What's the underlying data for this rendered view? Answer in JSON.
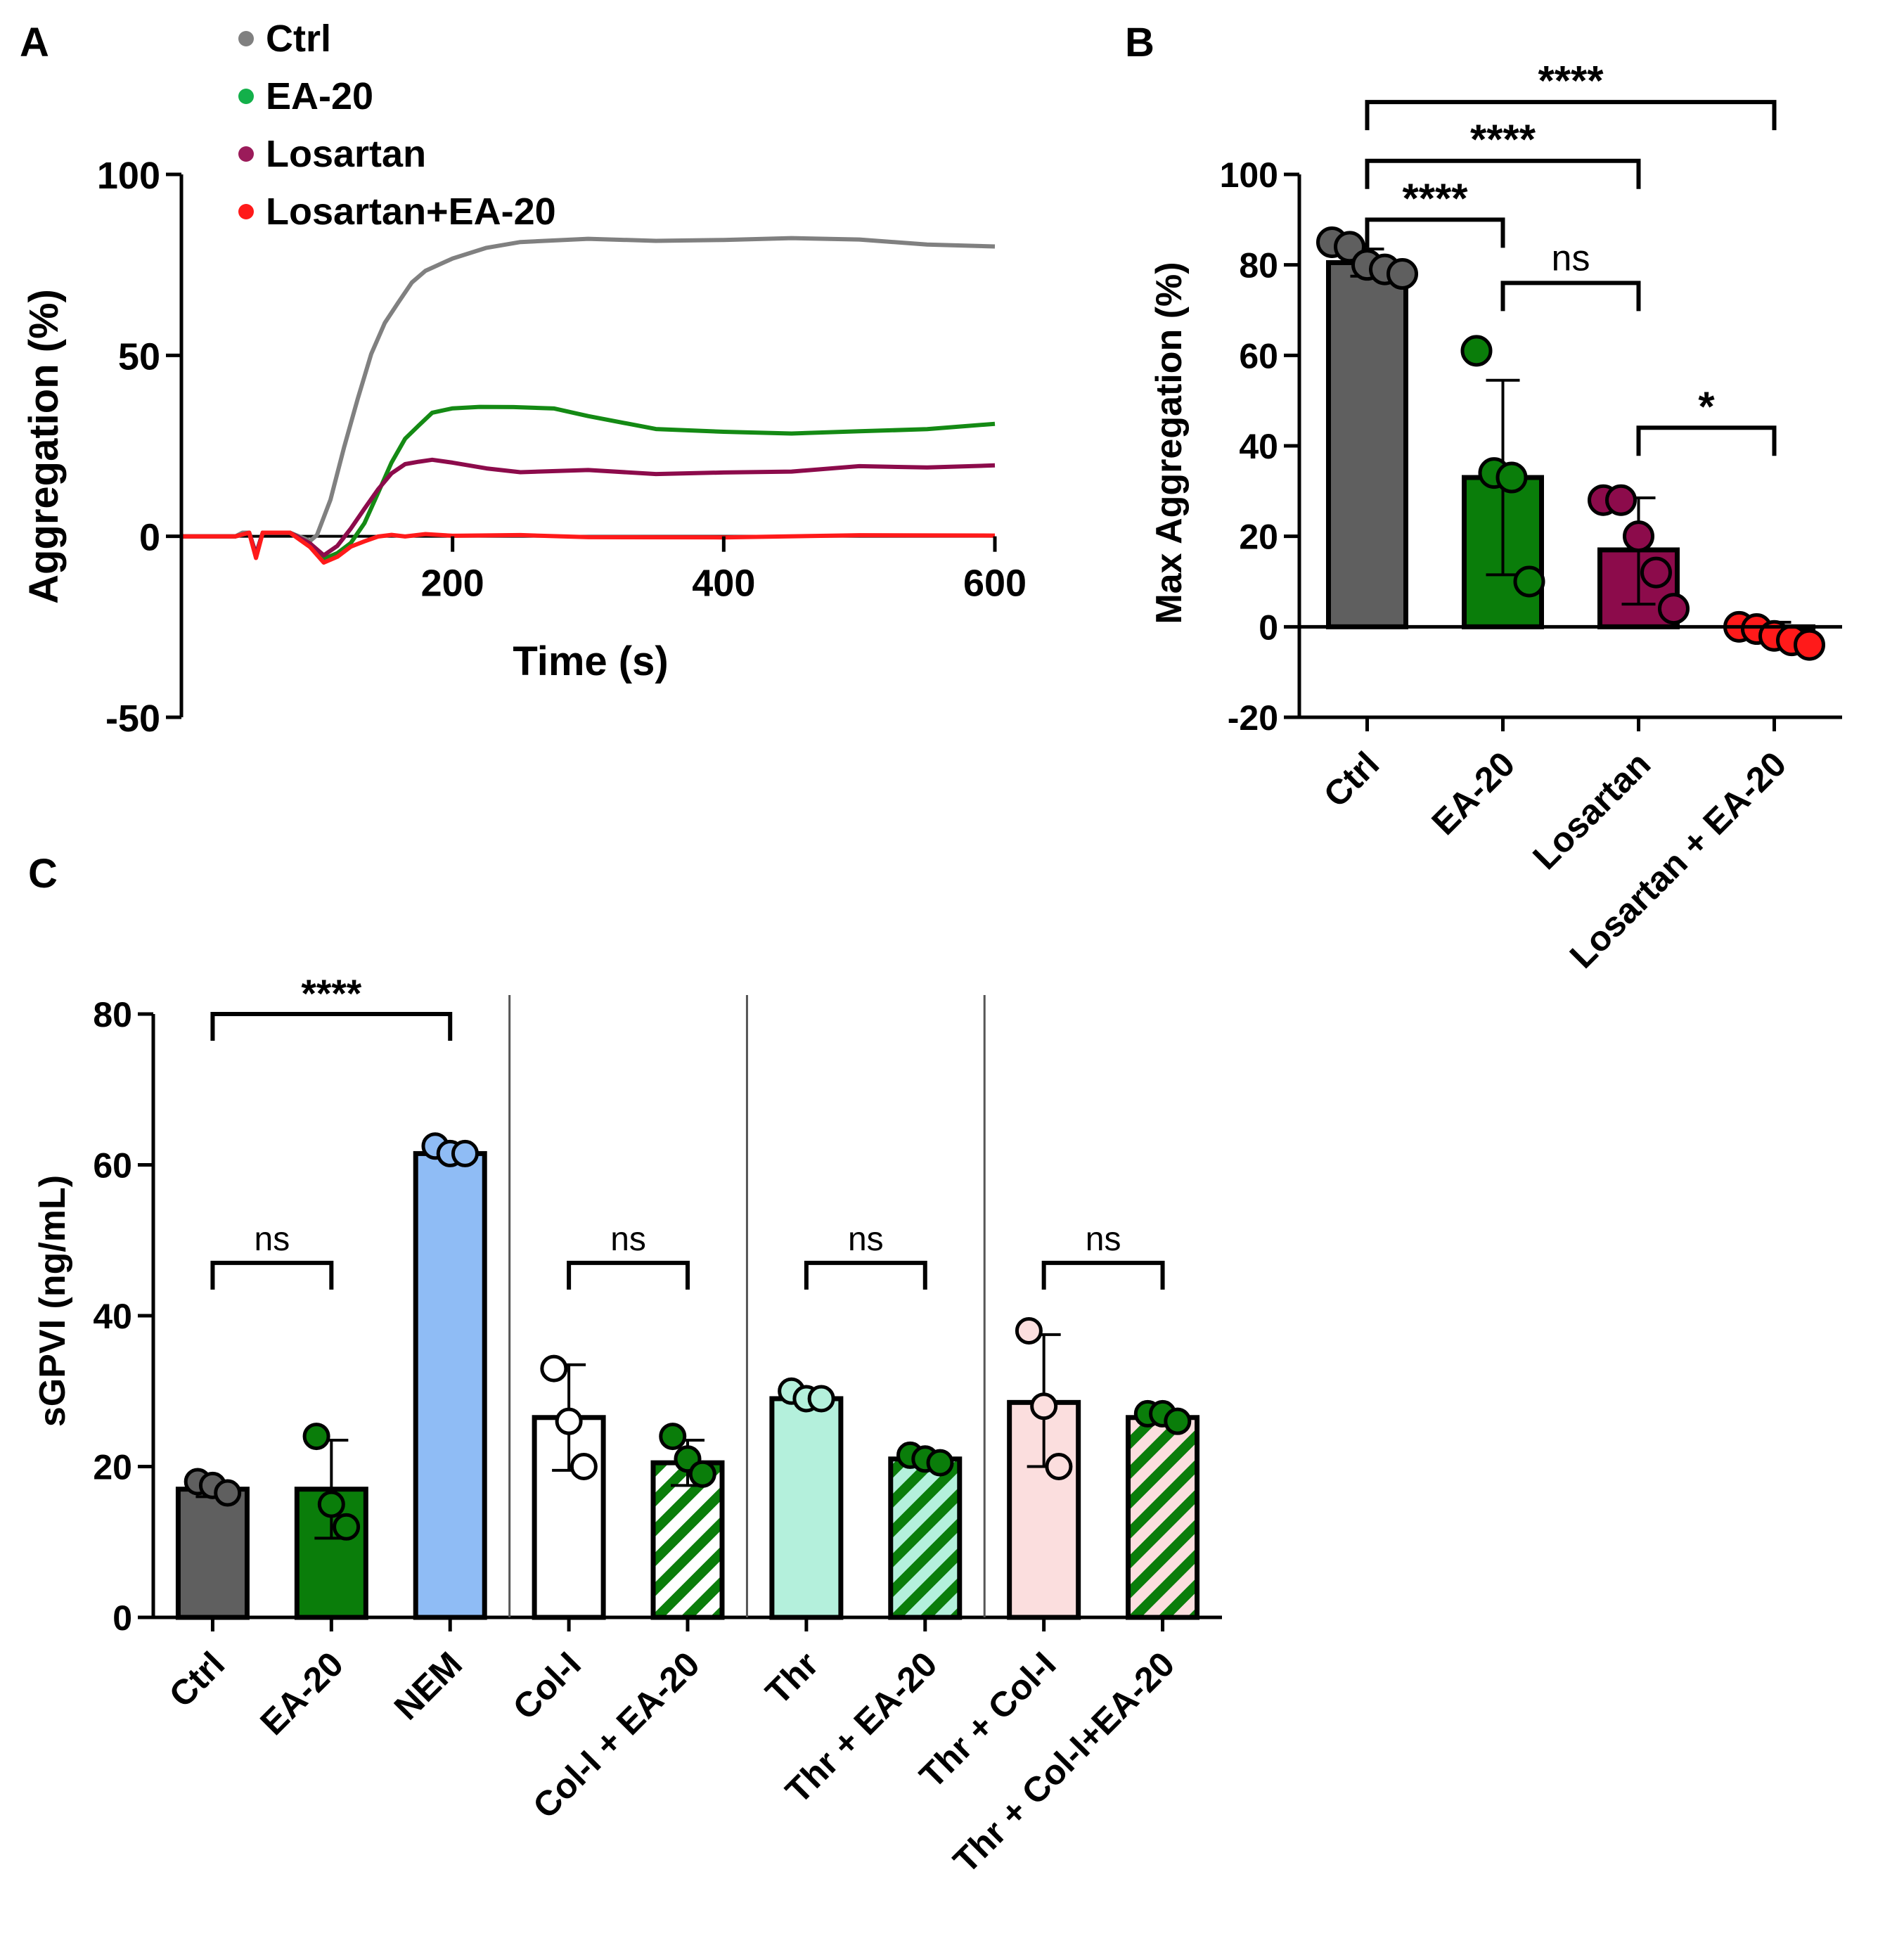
{
  "panel_labels": {
    "a": "A",
    "b": "B",
    "c": "C"
  },
  "colors": {
    "ctrl": "#5f5f5f",
    "ctrl_line": "#808080",
    "ea20": "#0a7d0a",
    "losartan": "#8c0b4b",
    "los_ea20": "#ff1a1a",
    "nem": "#8fbcf5",
    "colI": "#ffffff",
    "thr": "#b4f0dc",
    "thr_colI": "#fbdede",
    "axis": "#000000"
  },
  "chart_data": [
    {
      "id": "A",
      "type": "line",
      "title": "",
      "xlabel": "Time (s)",
      "ylabel": "Aggregation (%)",
      "xlim": [
        0,
        600
      ],
      "ylim": [
        -50,
        100
      ],
      "xticks": [
        "200",
        "400",
        "600"
      ],
      "xtick_values": [
        200,
        400,
        600
      ],
      "yticks": [
        "-50",
        "0",
        "50",
        "100"
      ],
      "ytick_values": [
        -50,
        0,
        50,
        100
      ],
      "legend": [
        {
          "label": "Ctrl",
          "color": "#808080"
        },
        {
          "label": "EA-20",
          "color": "#13b04a"
        },
        {
          "label": "Losartan",
          "color": "#9b1b5a"
        },
        {
          "label": "Losartan+EA-20",
          "color": "#ff1a1a"
        }
      ],
      "series": [
        {
          "name": "Ctrl",
          "color": "#808080",
          "x": [
            0,
            40,
            45,
            50,
            55,
            60,
            80,
            95,
            100,
            110,
            120,
            130,
            140,
            150,
            160,
            170,
            180,
            200,
            225,
            250,
            300,
            350,
            400,
            450,
            500,
            550,
            600
          ],
          "y": [
            0,
            0,
            1,
            1,
            -5,
            1,
            1,
            -1,
            0,
            10,
            25,
            38,
            50,
            59,
            65,
            70,
            73,
            77,
            80,
            81,
            82,
            82,
            82,
            82,
            82,
            81,
            80
          ]
        },
        {
          "name": "EA-20",
          "color": "#148a14",
          "x": [
            0,
            40,
            50,
            55,
            60,
            80,
            95,
            105,
            115,
            125,
            135,
            145,
            155,
            165,
            175,
            185,
            200,
            220,
            245,
            275,
            300,
            350,
            400,
            450,
            500,
            550,
            600
          ],
          "y": [
            0,
            0,
            1,
            -5,
            1,
            1,
            -2,
            -6,
            -5,
            -2,
            4,
            12,
            20,
            27,
            31,
            34,
            35,
            36,
            36,
            35,
            33,
            30,
            29,
            28,
            29,
            30,
            31
          ]
        },
        {
          "name": "Losartan",
          "color": "#8c0b4b",
          "x": [
            0,
            40,
            50,
            55,
            60,
            80,
            95,
            105,
            115,
            125,
            135,
            145,
            155,
            165,
            175,
            185,
            200,
            225,
            250,
            300,
            350,
            400,
            450,
            500,
            550,
            600
          ],
          "y": [
            0,
            0,
            1,
            -5,
            1,
            1,
            -2,
            -5,
            -3,
            2,
            8,
            13,
            17,
            20,
            21,
            21,
            20,
            19,
            18,
            18,
            17,
            18,
            18,
            19,
            19,
            20
          ]
        },
        {
          "name": "Losartan+EA-20",
          "color": "#ff1a1a",
          "x": [
            0,
            40,
            50,
            55,
            60,
            80,
            95,
            105,
            115,
            125,
            135,
            145,
            155,
            165,
            180,
            200,
            250,
            300,
            400,
            500,
            600
          ],
          "y": [
            0,
            0,
            1,
            -6,
            1,
            1,
            -3,
            -7,
            -6,
            -3,
            -1,
            0,
            0,
            0,
            1,
            0,
            0,
            0,
            0,
            0,
            0
          ]
        }
      ]
    },
    {
      "id": "B",
      "type": "bar",
      "title": "",
      "xlabel": "",
      "ylabel": "Max Aggregation (%)",
      "ylim": [
        -20,
        100
      ],
      "yticks": [
        "-20",
        "0",
        "20",
        "40",
        "60",
        "80",
        "100"
      ],
      "ytick_values": [
        -20,
        0,
        20,
        40,
        60,
        80,
        100
      ],
      "categories": [
        "Ctrl",
        "EA-20",
        "Losartan",
        "Losartan + EA-20"
      ],
      "values": [
        80.5,
        33,
        17,
        -1
      ],
      "error_lo": [
        77.5,
        11.5,
        5,
        -3
      ],
      "error_hi": [
        83.5,
        54.5,
        28.5,
        1
      ],
      "bar_colors": [
        "#5f5f5f",
        "#0a7d0a",
        "#8c0b4b",
        "#ff1a1a"
      ],
      "points": [
        [
          85,
          84,
          80,
          79,
          78
        ],
        [
          61,
          34,
          33,
          10
        ],
        [
          28,
          28,
          20,
          12,
          4
        ],
        [
          0,
          -0.5,
          -2,
          -3,
          -4
        ]
      ],
      "significance": [
        {
          "from": 0,
          "to": 1,
          "y": 90,
          "label": "****"
        },
        {
          "from": 0,
          "to": 2,
          "y": 103,
          "label": "****"
        },
        {
          "from": 0,
          "to": 3,
          "y": 116,
          "label": "****"
        },
        {
          "from": 1,
          "to": 2,
          "y": 76,
          "label": "ns"
        },
        {
          "from": 2,
          "to": 3,
          "y": 44,
          "label": "*"
        }
      ]
    },
    {
      "id": "C",
      "type": "bar",
      "title": "",
      "xlabel": "",
      "ylabel": "sGPVI (ng/mL)",
      "ylim": [
        0,
        80
      ],
      "yticks": [
        "0",
        "20",
        "40",
        "60",
        "80"
      ],
      "ytick_values": [
        0,
        20,
        40,
        60,
        80
      ],
      "categories": [
        "Ctrl",
        "EA-20",
        "NEM",
        "Col-I",
        "Col-I + EA-20",
        "Thr",
        "Thr + EA-20",
        "Thr + Col-I",
        "Thr + Col-I+EA-20"
      ],
      "values": [
        17,
        17,
        61.5,
        26.5,
        20.5,
        29,
        21,
        28.5,
        26.5
      ],
      "error_lo": [
        16,
        10.5,
        61,
        19.5,
        17.5,
        28.5,
        20.5,
        20,
        26
      ],
      "error_hi": [
        18,
        23.5,
        62,
        33.5,
        23.5,
        30,
        21.5,
        37.5,
        27
      ],
      "bar_colors": [
        "#5f5f5f",
        "#0a7d0a",
        "#8fbcf5",
        "#ffffff",
        "#0a7d0a",
        "#b4f0dc",
        "#0a7d0a",
        "#fbdede",
        "#0a7d0a"
      ],
      "hatched": [
        false,
        false,
        false,
        false,
        true,
        false,
        true,
        false,
        true
      ],
      "hatch_bg": [
        "",
        "",
        "",
        "",
        "#ffffff",
        "",
        "#b4f0dc",
        "",
        "#fbdede"
      ],
      "points": [
        [
          18,
          17.5,
          16.5
        ],
        [
          24,
          15,
          12
        ],
        [
          62.5,
          61.5,
          61.5
        ],
        [
          33,
          26,
          20
        ],
        [
          24,
          21,
          19
        ],
        [
          30,
          29,
          29
        ],
        [
          21.5,
          21,
          20.5
        ],
        [
          38,
          28,
          20
        ],
        [
          27,
          27,
          26
        ]
      ],
      "point_colors": [
        "#5f5f5f",
        "#0a7d0a",
        "#8fbcf5",
        "#ffffff",
        "#0a7d0a",
        "#b4f0dc",
        "#0a7d0a",
        "#fbdede",
        "#0a7d0a"
      ],
      "separators_after": [
        2,
        4,
        6
      ],
      "significance": [
        {
          "from": 0,
          "to": 2,
          "y": 80,
          "label": "****"
        },
        {
          "from": 0,
          "to": 1,
          "y": 47,
          "label": "ns"
        },
        {
          "from": 3,
          "to": 4,
          "y": 47,
          "label": "ns"
        },
        {
          "from": 5,
          "to": 6,
          "y": 47,
          "label": "ns"
        },
        {
          "from": 7,
          "to": 8,
          "y": 47,
          "label": "ns"
        }
      ]
    }
  ]
}
